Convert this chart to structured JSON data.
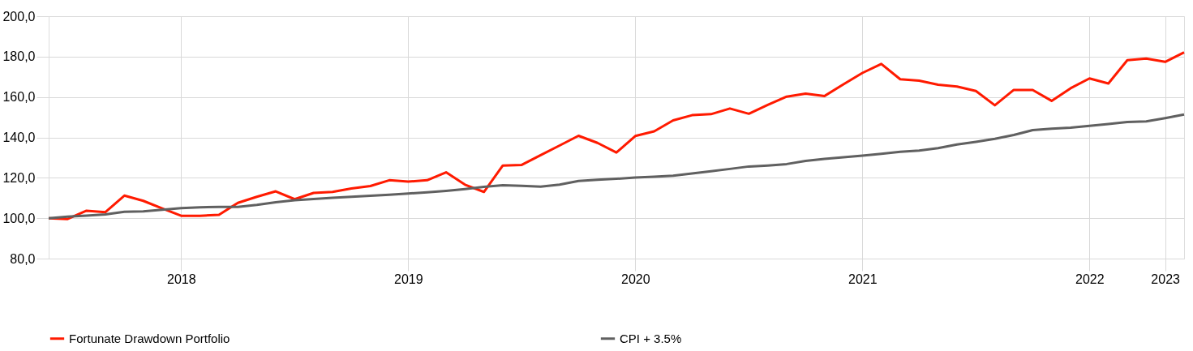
{
  "chart_data": {
    "type": "line",
    "categories": [
      null,
      null,
      null,
      null,
      null,
      null,
      null,
      "2018",
      null,
      null,
      null,
      null,
      null,
      null,
      null,
      null,
      null,
      null,
      null,
      "2019",
      null,
      null,
      null,
      null,
      null,
      null,
      null,
      null,
      null,
      null,
      null,
      "2020",
      null,
      null,
      null,
      null,
      null,
      null,
      null,
      null,
      null,
      null,
      null,
      "2021",
      null,
      null,
      null,
      null,
      null,
      null,
      null,
      null,
      null,
      null,
      null,
      "2022",
      null,
      null,
      null,
      "2023",
      null
    ],
    "series": [
      {
        "name": "Fortunate Drawdown Portfolio",
        "color": "#ff1a00",
        "values": [
          100.0,
          99.6,
          103.7,
          103.0,
          111.2,
          108.6,
          104.8,
          101.2,
          101.2,
          101.7,
          107.6,
          110.6,
          113.3,
          109.4,
          112.5,
          113.0,
          114.7,
          115.9,
          118.8,
          118.1,
          118.8,
          122.7,
          116.6,
          113.0,
          126.1,
          126.4,
          131.2,
          136.0,
          140.8,
          137.3,
          132.5,
          140.7,
          143.0,
          148.4,
          151.0,
          151.5,
          154.3,
          151.7,
          156.1,
          160.2,
          161.7,
          160.5,
          166.3,
          171.9,
          176.4,
          168.8,
          168.1,
          166.1,
          165.2,
          163.0,
          155.9,
          163.5,
          163.5,
          158.1,
          164.3,
          169.2,
          166.7,
          178.2,
          179.0,
          177.4,
          182.1
        ]
      },
      {
        "name": "CPI + 3.5%",
        "color": "#606060",
        "values": [
          100.0,
          100.8,
          101.3,
          101.9,
          103.2,
          103.4,
          104.2,
          105.0,
          105.4,
          105.6,
          105.6,
          106.6,
          107.9,
          108.9,
          109.5,
          110.1,
          110.6,
          111.1,
          111.6,
          112.2,
          112.8,
          113.5,
          114.4,
          115.5,
          116.3,
          116.0,
          115.6,
          116.6,
          118.4,
          119.0,
          119.5,
          120.1,
          120.5,
          121.0,
          122.1,
          123.2,
          124.4,
          125.6,
          126.1,
          126.8,
          128.4,
          129.4,
          130.2,
          131.0,
          131.9,
          132.9,
          133.5,
          134.7,
          136.5,
          137.8,
          139.3,
          141.2,
          143.6,
          144.3,
          144.8,
          145.7,
          146.6,
          147.6,
          147.9,
          149.5,
          151.3
        ]
      }
    ],
    "ylim": [
      80,
      200
    ],
    "yticks": [
      {
        "value": 80,
        "label": "80,0"
      },
      {
        "value": 100,
        "label": "100,0"
      },
      {
        "value": 120,
        "label": "120,0"
      },
      {
        "value": 140,
        "label": "140,0"
      },
      {
        "value": 160,
        "label": "160,0"
      },
      {
        "value": 180,
        "label": "180,0"
      },
      {
        "value": 200,
        "label": "200,0"
      }
    ],
    "grid": true,
    "legend": "bottom",
    "marker": "none",
    "line_style": "solid"
  }
}
